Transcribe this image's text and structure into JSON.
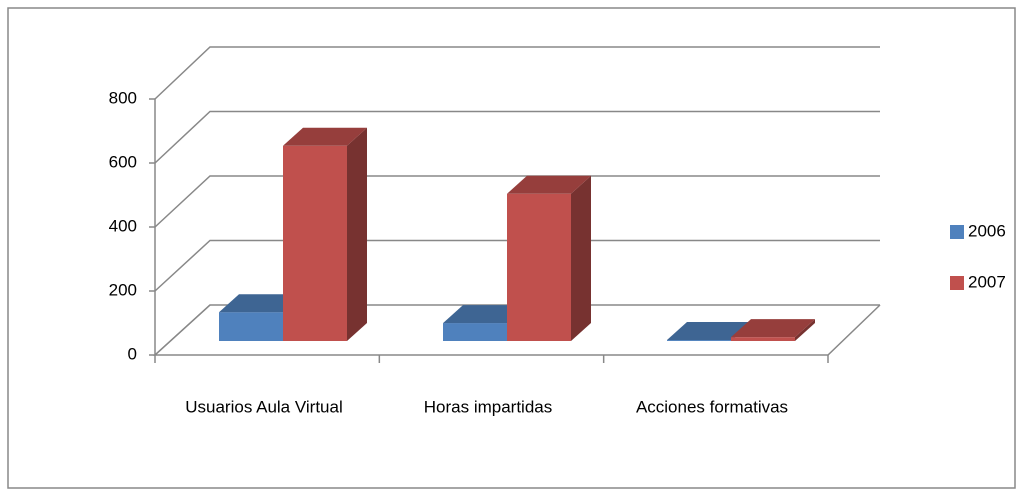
{
  "chart_data": {
    "type": "bar3d",
    "categories": [
      "Usuarios Aula Virtual",
      "Horas impartidas",
      "Acciones formativas"
    ],
    "series": [
      {
        "name": "2006",
        "color": "#4f81bd",
        "values": [
          90,
          56,
          3
        ]
      },
      {
        "name": "2007",
        "color": "#c0504d",
        "values": [
          610,
          460,
          12
        ]
      }
    ],
    "ylim": [
      0,
      800
    ],
    "yticks": [
      0,
      200,
      400,
      600,
      800
    ],
    "grid": true,
    "legend": "right"
  }
}
